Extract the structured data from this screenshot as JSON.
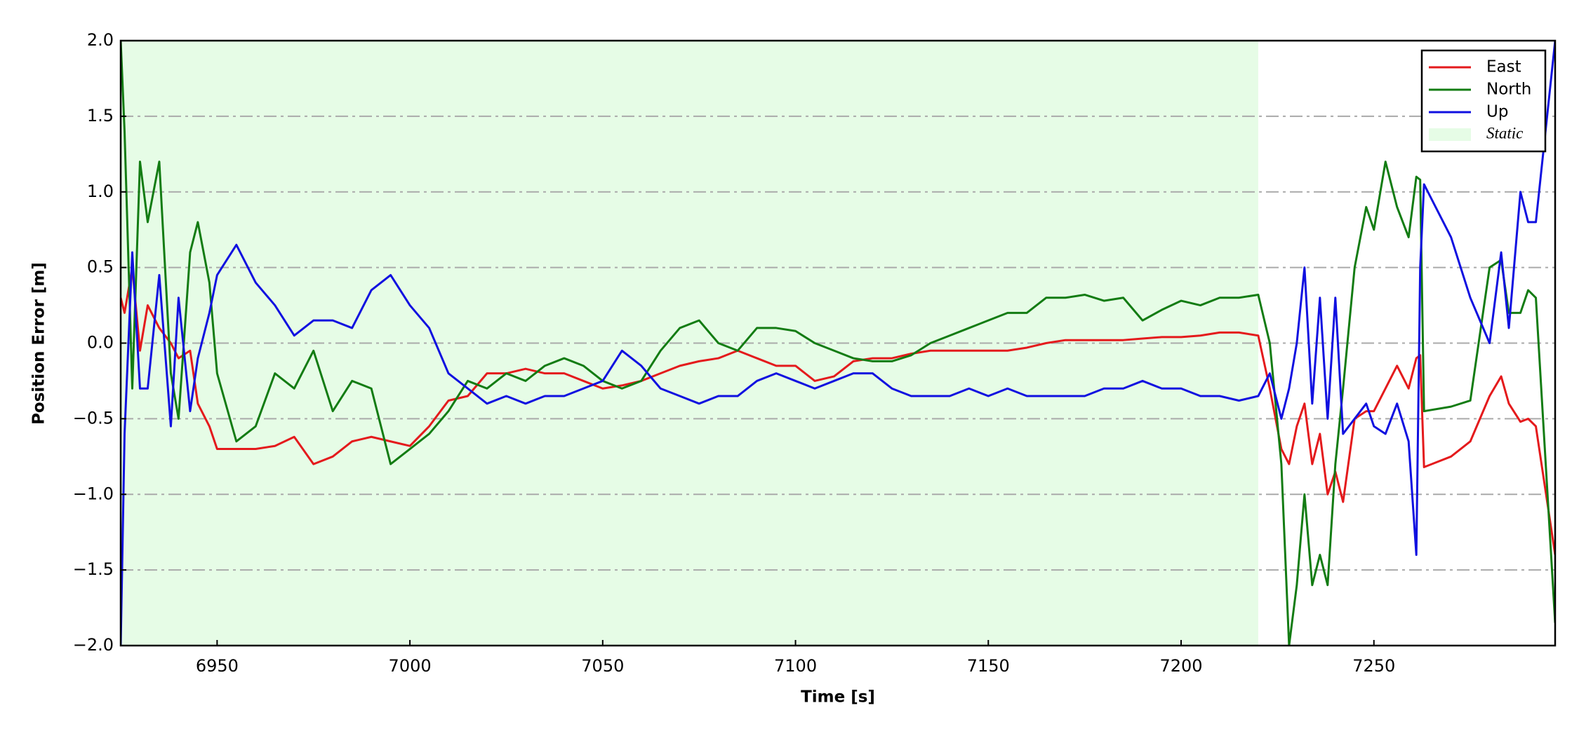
{
  "chart_data": {
    "type": "line",
    "xlabel": "Time [s]",
    "ylabel": "Position Error [m]",
    "x": [
      6925,
      6926,
      6928,
      6930,
      6932,
      6935,
      6938,
      6940,
      6943,
      6945,
      6948,
      6950,
      6955,
      6960,
      6965,
      6970,
      6975,
      6980,
      6985,
      6990,
      6995,
      7000,
      7005,
      7010,
      7015,
      7020,
      7025,
      7030,
      7035,
      7040,
      7045,
      7050,
      7055,
      7060,
      7065,
      7070,
      7075,
      7080,
      7085,
      7090,
      7095,
      7100,
      7105,
      7110,
      7115,
      7120,
      7125,
      7130,
      7135,
      7140,
      7145,
      7150,
      7155,
      7160,
      7165,
      7170,
      7175,
      7180,
      7185,
      7190,
      7195,
      7200,
      7205,
      7210,
      7215,
      7220,
      7223,
      7226,
      7228,
      7230,
      7232,
      7234,
      7236,
      7238,
      7240,
      7242,
      7245,
      7248,
      7250,
      7253,
      7256,
      7259,
      7261,
      7262,
      7263,
      7270,
      7275,
      7280,
      7283,
      7285,
      7288,
      7290,
      7292,
      7297
    ],
    "series": [
      {
        "name": "East",
        "color": "#e41a1c",
        "values": [
          0.3,
          0.2,
          0.5,
          -0.05,
          0.25,
          0.1,
          0.0,
          -0.1,
          -0.05,
          -0.4,
          -0.55,
          -0.7,
          -0.7,
          -0.7,
          -0.68,
          -0.62,
          -0.8,
          -0.75,
          -0.65,
          -0.62,
          -0.65,
          -0.68,
          -0.55,
          -0.38,
          -0.35,
          -0.2,
          -0.2,
          -0.17,
          -0.2,
          -0.2,
          -0.25,
          -0.3,
          -0.28,
          -0.25,
          -0.2,
          -0.15,
          -0.12,
          -0.1,
          -0.05,
          -0.1,
          -0.15,
          -0.15,
          -0.25,
          -0.22,
          -0.12,
          -0.1,
          -0.1,
          -0.07,
          -0.05,
          -0.05,
          -0.05,
          -0.05,
          -0.05,
          -0.03,
          0,
          0.02,
          0.02,
          0.02,
          0.02,
          0.03,
          0.04,
          0.04,
          0.05,
          0.07,
          0.07,
          0.05,
          -0.3,
          -0.7,
          -0.8,
          -0.55,
          -0.4,
          -0.8,
          -0.6,
          -1.0,
          -0.85,
          -1.05,
          -0.5,
          -0.45,
          -0.45,
          -0.3,
          -0.15,
          -0.3,
          -0.1,
          -0.08,
          -0.82,
          -0.75,
          -0.65,
          -0.35,
          -0.22,
          -0.4,
          -0.52,
          -0.5,
          -0.55,
          -1.4
        ]
      },
      {
        "name": "North",
        "color": "#137c13",
        "values": [
          2.0,
          1.4,
          -0.3,
          1.2,
          0.8,
          1.2,
          -0.2,
          -0.5,
          0.6,
          0.8,
          0.4,
          -0.2,
          -0.65,
          -0.55,
          -0.2,
          -0.3,
          -0.05,
          -0.45,
          -0.25,
          -0.3,
          -0.8,
          -0.7,
          -0.6,
          -0.45,
          -0.25,
          -0.3,
          -0.2,
          -0.25,
          -0.15,
          -0.1,
          -0.15,
          -0.25,
          -0.3,
          -0.25,
          -0.05,
          0.1,
          0.15,
          0.0,
          -0.05,
          0.1,
          0.1,
          0.08,
          0.0,
          -0.05,
          -0.1,
          -0.12,
          -0.12,
          -0.08,
          0.0,
          0.05,
          0.1,
          0.15,
          0.2,
          0.2,
          0.3,
          0.3,
          0.32,
          0.28,
          0.3,
          0.15,
          0.22,
          0.28,
          0.25,
          0.3,
          0.3,
          0.32,
          0.0,
          -0.8,
          -2.0,
          -1.6,
          -1.0,
          -1.6,
          -1.4,
          -1.6,
          -0.8,
          -0.3,
          0.5,
          0.9,
          0.75,
          1.2,
          0.9,
          0.7,
          1.1,
          1.08,
          -0.45,
          -0.42,
          -0.38,
          0.5,
          0.55,
          0.2,
          0.2,
          0.35,
          0.3,
          -1.85
        ]
      },
      {
        "name": "Up",
        "color": "#1010e0",
        "values": [
          -2.0,
          -0.6,
          0.6,
          -0.3,
          -0.3,
          0.45,
          -0.55,
          0.3,
          -0.45,
          -0.1,
          0.2,
          0.45,
          0.65,
          0.4,
          0.25,
          0.05,
          0.15,
          0.15,
          0.1,
          0.35,
          0.45,
          0.25,
          0.1,
          -0.2,
          -0.3,
          -0.4,
          -0.35,
          -0.4,
          -0.35,
          -0.35,
          -0.3,
          -0.25,
          -0.05,
          -0.15,
          -0.3,
          -0.35,
          -0.4,
          -0.35,
          -0.35,
          -0.25,
          -0.2,
          -0.25,
          -0.3,
          -0.25,
          -0.2,
          -0.2,
          -0.3,
          -0.35,
          -0.35,
          -0.35,
          -0.3,
          -0.35,
          -0.3,
          -0.35,
          -0.35,
          -0.35,
          -0.35,
          -0.3,
          -0.3,
          -0.25,
          -0.3,
          -0.3,
          -0.35,
          -0.35,
          -0.38,
          -0.35,
          -0.2,
          -0.5,
          -0.3,
          0.0,
          0.5,
          -0.4,
          0.3,
          -0.5,
          0.3,
          -0.6,
          -0.5,
          -0.4,
          -0.55,
          -0.6,
          -0.4,
          -0.65,
          -1.4,
          0.5,
          1.05,
          0.7,
          0.3,
          0.0,
          0.6,
          0.1,
          1.0,
          0.8,
          0.8,
          2.0
        ]
      }
    ],
    "spans": [
      {
        "name": "Static",
        "color": "#e6fce6",
        "x": [
          6925,
          7220
        ]
      }
    ],
    "xlim": [
      6925,
      7297
    ],
    "ylim": [
      -2,
      2
    ],
    "xticks": [
      6950,
      7000,
      7050,
      7100,
      7150,
      7200,
      7250
    ],
    "yticks": [
      {
        "value": -2,
        "label": "−2.0"
      },
      {
        "value": -1.5,
        "label": "−1.5"
      },
      {
        "value": -1,
        "label": "−1.0"
      },
      {
        "value": -0.5,
        "label": "−0.5"
      },
      {
        "value": 0,
        "label": "0.0"
      },
      {
        "value": 0.5,
        "label": "0.5"
      },
      {
        "value": 1,
        "label": "1.0"
      },
      {
        "value": 1.5,
        "label": "1.5"
      },
      {
        "value": 2,
        "label": "2.0"
      }
    ],
    "grid": true,
    "legend": "upper right"
  }
}
